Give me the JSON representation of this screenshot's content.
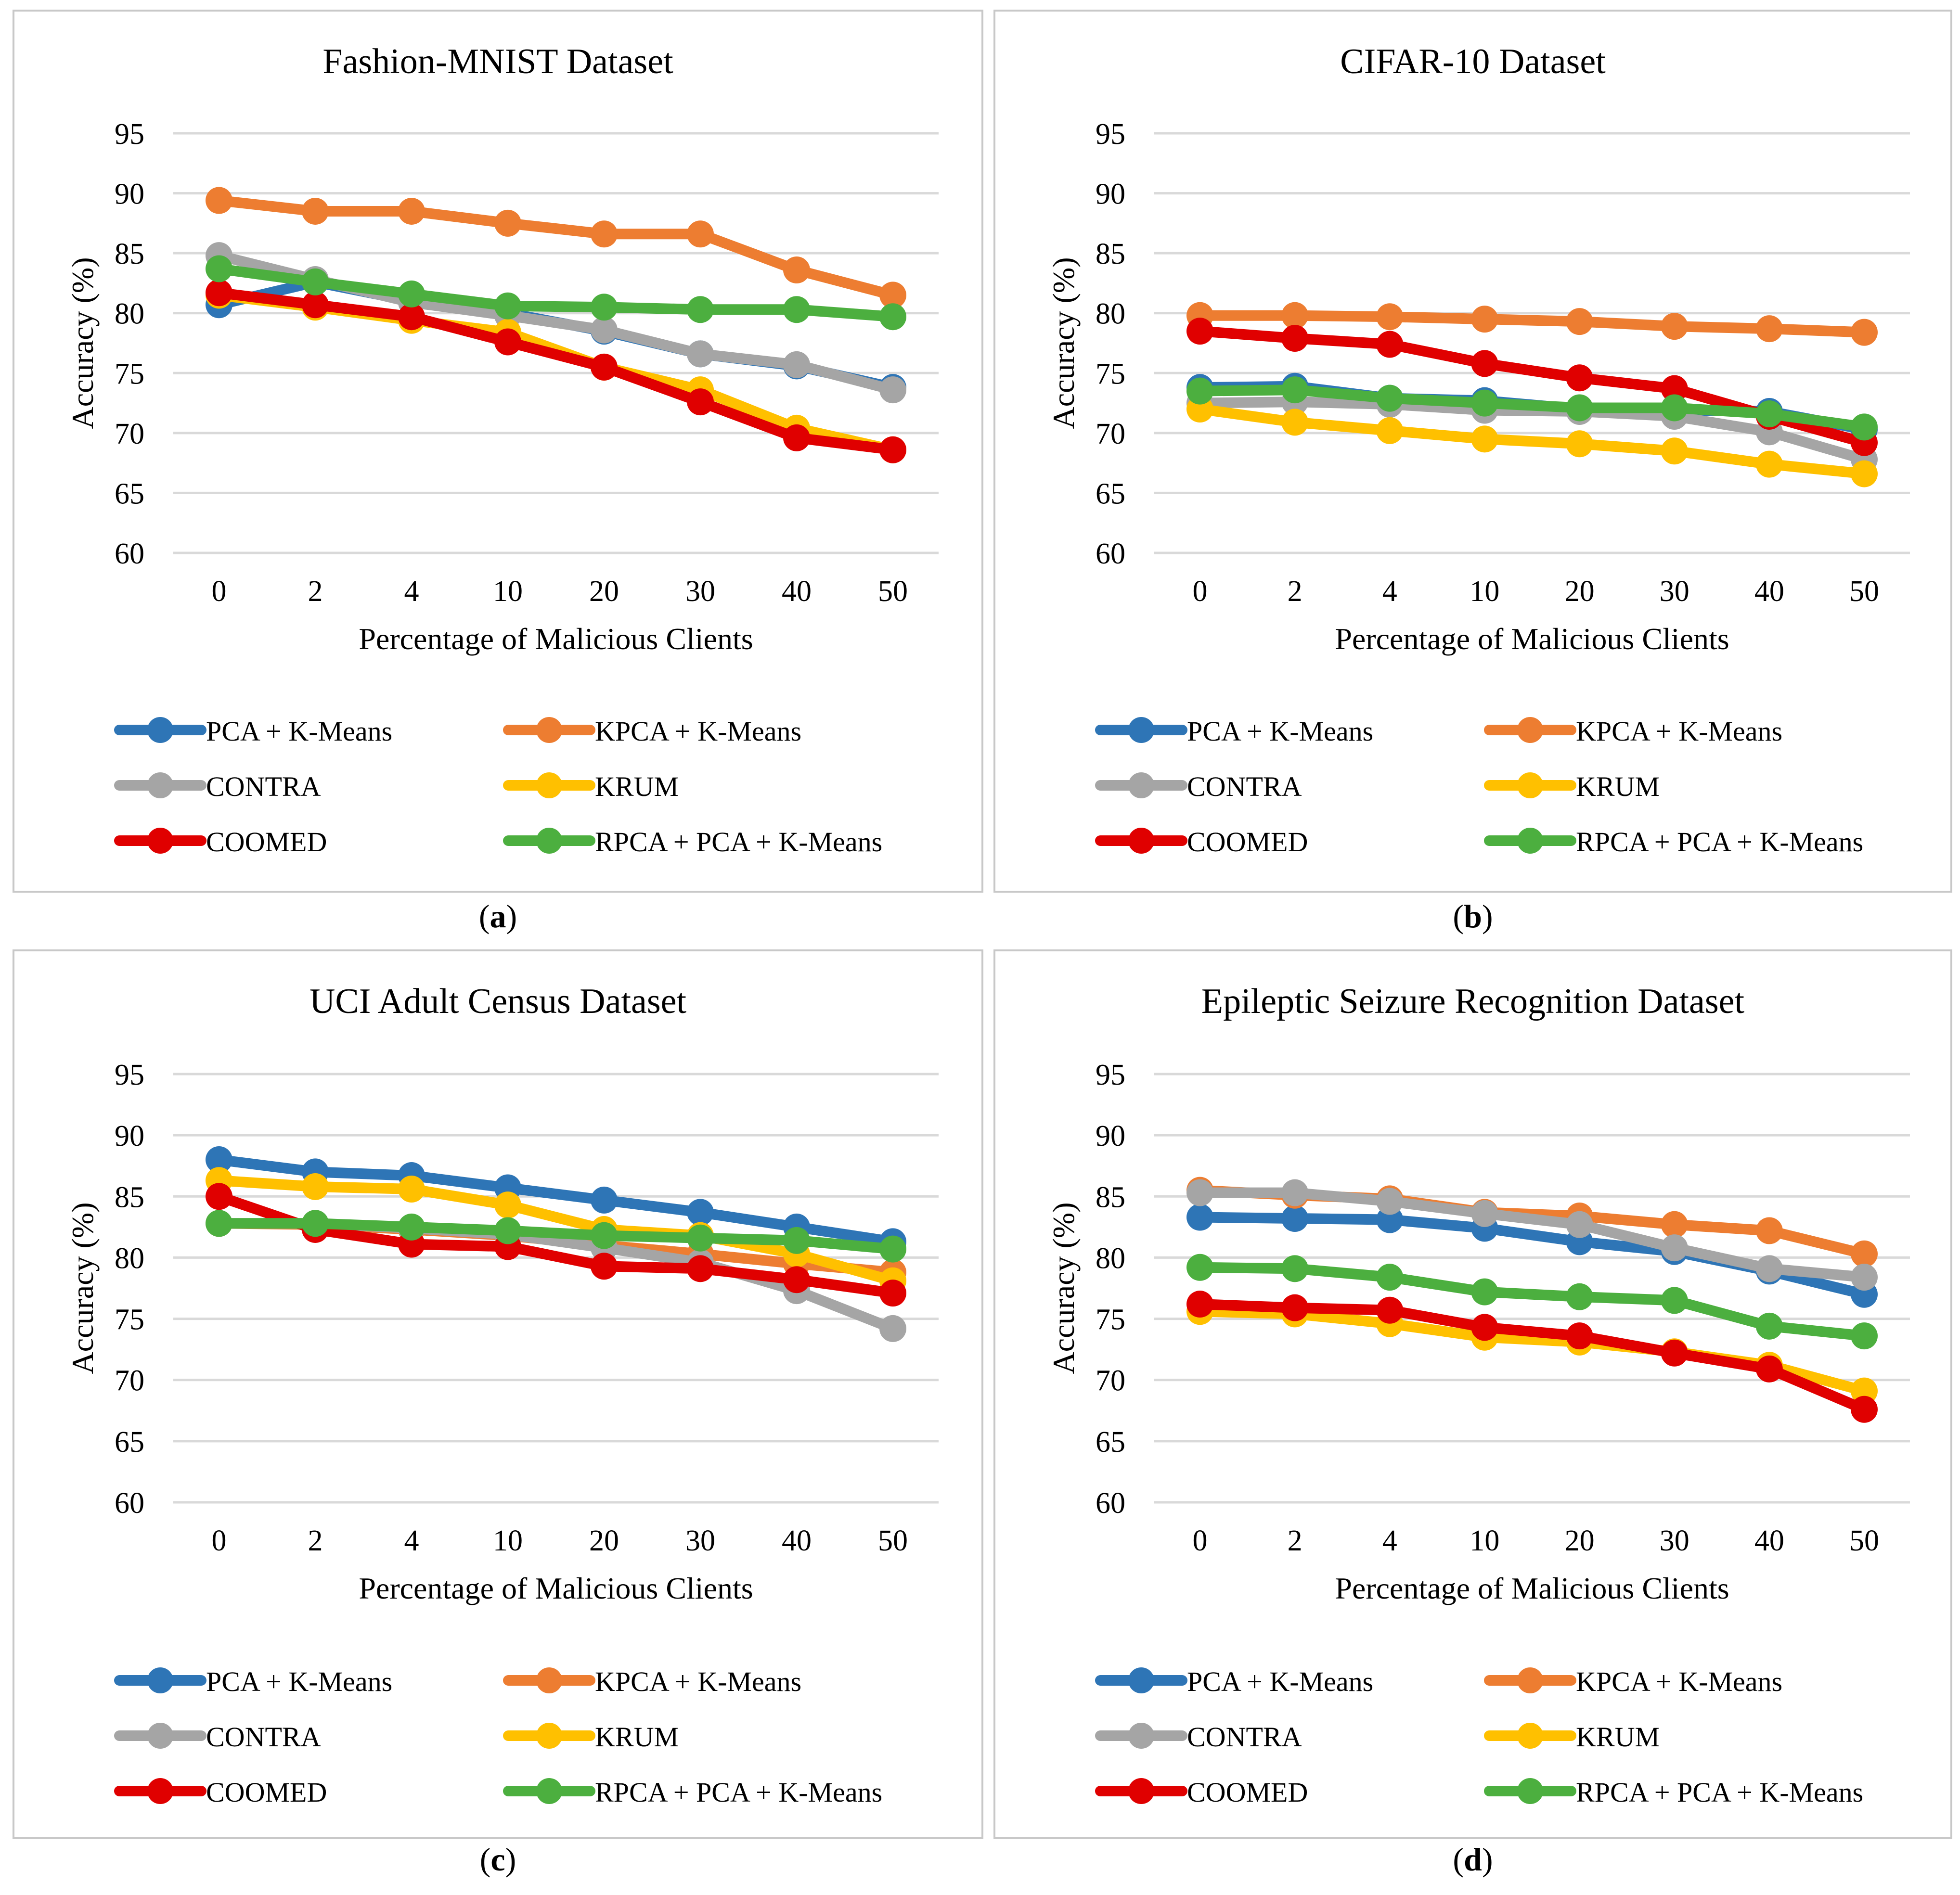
{
  "figure": {
    "series_colors": {
      "PCA + K-Means": "#2E75B6",
      "KPCA + K-Means": "#ED7D31",
      "CONTRA": "#A5A5A5",
      "KRUM": "#FFC000",
      "COOMED": "#E00000",
      "RPCA + PCA + K-Means": "#4CAF3F"
    },
    "gridline_color": "#D9D9D9",
    "panel_border_color": "#C8C8C8"
  },
  "chart_data": [
    {
      "panel_label": "a",
      "type": "line",
      "title": "Fashion-MNIST Dataset",
      "xlabel": "Percentage of Malicious Clients",
      "ylabel": "Accuracy (%)",
      "categories": [
        "0",
        "2",
        "4",
        "10",
        "20",
        "30",
        "40",
        "50"
      ],
      "yticks": [
        "60",
        "65",
        "70",
        "75",
        "80",
        "85",
        "90",
        "95"
      ],
      "ylim": [
        60,
        95
      ],
      "grid": true,
      "legend_position": "bottom",
      "legend_labels": [
        "PCA + K-Means",
        "KPCA + K-Means",
        "CONTRA",
        "KRUM",
        "COOMED",
        "RPCA + PCA + K-Means"
      ],
      "series": [
        {
          "name": "PCA + K-Means",
          "values": [
            80.7,
            82.6,
            81.0,
            80.0,
            78.5,
            76.6,
            75.6,
            73.8
          ]
        },
        {
          "name": "KPCA + K-Means",
          "values": [
            89.4,
            88.5,
            88.5,
            87.5,
            86.6,
            86.6,
            83.6,
            81.5
          ]
        },
        {
          "name": "CONTRA",
          "values": [
            84.8,
            82.8,
            80.9,
            79.8,
            78.6,
            76.6,
            75.7,
            73.6
          ]
        },
        {
          "name": "KRUM",
          "values": [
            81.5,
            80.5,
            79.4,
            78.4,
            75.5,
            73.6,
            70.4,
            68.6
          ]
        },
        {
          "name": "COOMED",
          "values": [
            81.7,
            80.7,
            79.7,
            77.6,
            75.5,
            72.6,
            69.6,
            68.6
          ]
        },
        {
          "name": "RPCA + PCA + K-Means",
          "values": [
            83.7,
            82.6,
            81.6,
            80.6,
            80.5,
            80.3,
            80.3,
            79.7
          ]
        }
      ]
    },
    {
      "panel_label": "b",
      "type": "line",
      "title": "CIFAR-10 Dataset",
      "xlabel": "Percentage of Malicious Clients",
      "ylabel": "Accuracy (%)",
      "categories": [
        "0",
        "2",
        "4",
        "10",
        "20",
        "30",
        "40",
        "50"
      ],
      "yticks": [
        "60",
        "65",
        "70",
        "75",
        "80",
        "85",
        "90",
        "95"
      ],
      "ylim": [
        60,
        95
      ],
      "grid": true,
      "legend_position": "bottom",
      "legend_labels": [
        "PCA + K-Means",
        "KPCA + K-Means",
        "CONTRA",
        "KRUM",
        "COOMED",
        "RPCA + PCA + K-Means"
      ],
      "series": [
        {
          "name": "PCA + K-Means",
          "values": [
            73.8,
            73.9,
            72.9,
            72.7,
            72.0,
            71.9,
            71.8,
            70.3
          ]
        },
        {
          "name": "KPCA + K-Means",
          "values": [
            79.8,
            79.8,
            79.7,
            79.5,
            79.3,
            78.9,
            78.7,
            78.4
          ]
        },
        {
          "name": "CONTRA",
          "values": [
            72.5,
            72.6,
            72.4,
            71.9,
            71.8,
            71.4,
            70.1,
            67.8
          ]
        },
        {
          "name": "KRUM",
          "values": [
            72.0,
            70.9,
            70.2,
            69.5,
            69.1,
            68.5,
            67.4,
            66.6
          ]
        },
        {
          "name": "COOMED",
          "values": [
            78.5,
            77.9,
            77.4,
            75.8,
            74.6,
            73.7,
            71.4,
            69.2
          ]
        },
        {
          "name": "RPCA + PCA + K-Means",
          "values": [
            73.5,
            73.6,
            72.9,
            72.5,
            72.1,
            72.1,
            71.6,
            70.5
          ]
        }
      ]
    },
    {
      "panel_label": "c",
      "type": "line",
      "title": "UCI Adult Census Dataset",
      "xlabel": "Percentage of Malicious Clients",
      "ylabel": "Accuracy (%)",
      "categories": [
        "0",
        "2",
        "4",
        "10",
        "20",
        "30",
        "40",
        "50"
      ],
      "yticks": [
        "60",
        "65",
        "70",
        "75",
        "80",
        "85",
        "90",
        "95"
      ],
      "ylim": [
        60,
        95
      ],
      "grid": true,
      "legend_position": "bottom",
      "legend_labels": [
        "PCA + K-Means",
        "KPCA + K-Means",
        "CONTRA",
        "KRUM",
        "COOMED",
        "RPCA + PCA + K-Means"
      ],
      "series": [
        {
          "name": "PCA + K-Means",
          "values": [
            88.0,
            87.0,
            86.7,
            85.7,
            84.7,
            83.7,
            82.5,
            81.3
          ]
        },
        {
          "name": "KPCA + K-Means",
          "values": [
            82.8,
            82.7,
            82.3,
            81.8,
            81.0,
            80.3,
            79.5,
            78.8
          ]
        },
        {
          "name": "CONTRA",
          "values": [
            82.8,
            82.8,
            82.4,
            81.9,
            80.8,
            79.6,
            77.3,
            74.2
          ]
        },
        {
          "name": "KRUM",
          "values": [
            86.3,
            85.8,
            85.6,
            84.3,
            82.3,
            81.8,
            80.3,
            78.1
          ]
        },
        {
          "name": "COOMED",
          "values": [
            85.0,
            82.3,
            81.1,
            80.9,
            79.3,
            79.1,
            78.2,
            77.1
          ]
        },
        {
          "name": "RPCA + PCA + K-Means",
          "values": [
            82.8,
            82.8,
            82.5,
            82.2,
            81.8,
            81.6,
            81.4,
            80.7
          ]
        }
      ]
    },
    {
      "panel_label": "d",
      "type": "line",
      "title": "Epileptic Seizure Recognition Dataset",
      "xlabel": "Percentage of Malicious Clients",
      "ylabel": "Accuracy (%)",
      "categories": [
        "0",
        "2",
        "4",
        "10",
        "20",
        "30",
        "40",
        "50"
      ],
      "yticks": [
        "60",
        "65",
        "70",
        "75",
        "80",
        "85",
        "90",
        "95"
      ],
      "ylim": [
        60,
        95
      ],
      "grid": true,
      "legend_position": "bottom",
      "legend_labels": [
        "PCA + K-Means",
        "KPCA + K-Means",
        "CONTRA",
        "KRUM",
        "COOMED",
        "RPCA + PCA + K-Means"
      ],
      "series": [
        {
          "name": "PCA + K-Means",
          "values": [
            83.3,
            83.2,
            83.1,
            82.4,
            81.3,
            80.5,
            78.9,
            77.0
          ]
        },
        {
          "name": "KPCA + K-Means",
          "values": [
            85.5,
            85.1,
            84.8,
            83.7,
            83.4,
            82.7,
            82.2,
            80.3
          ]
        },
        {
          "name": "CONTRA",
          "values": [
            85.3,
            85.3,
            84.6,
            83.6,
            82.7,
            80.8,
            79.1,
            78.4
          ]
        },
        {
          "name": "KRUM",
          "values": [
            75.6,
            75.4,
            74.6,
            73.5,
            73.1,
            72.3,
            71.2,
            69.1
          ]
        },
        {
          "name": "COOMED",
          "values": [
            76.2,
            75.9,
            75.7,
            74.3,
            73.6,
            72.2,
            70.9,
            67.6
          ]
        },
        {
          "name": "RPCA + PCA + K-Means",
          "values": [
            79.2,
            79.1,
            78.4,
            77.2,
            76.8,
            76.5,
            74.4,
            73.6
          ]
        }
      ]
    }
  ]
}
